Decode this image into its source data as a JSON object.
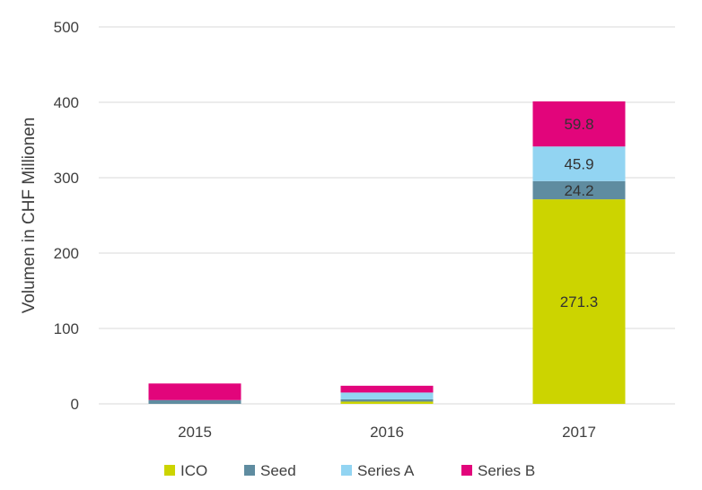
{
  "chart_data": {
    "type": "bar",
    "stacked": true,
    "title": "",
    "xlabel": "",
    "ylabel": "Volumen in CHF Millionen",
    "ylim": [
      0,
      500
    ],
    "yticks": [
      0,
      100,
      200,
      300,
      400,
      500
    ],
    "grid": true,
    "legend_position": "bottom",
    "categories": [
      "2015",
      "2016",
      "2017"
    ],
    "series": [
      {
        "name": "ICO",
        "color": "#CCD400",
        "values": [
          0,
          3,
          271.3
        ],
        "labels": [
          "",
          "",
          "271.3"
        ]
      },
      {
        "name": "Seed",
        "color": "#5F8CA0",
        "values": [
          5,
          3,
          24.2
        ],
        "labels": [
          "",
          "",
          "24.2"
        ]
      },
      {
        "name": "Series A",
        "color": "#92D4F2",
        "values": [
          0,
          9,
          45.9
        ],
        "labels": [
          "",
          "",
          "45.9"
        ]
      },
      {
        "name": "Series B",
        "color": "#E2057B",
        "values": [
          22,
          9,
          59.8
        ],
        "labels": [
          "",
          "",
          "59.8"
        ]
      }
    ]
  }
}
